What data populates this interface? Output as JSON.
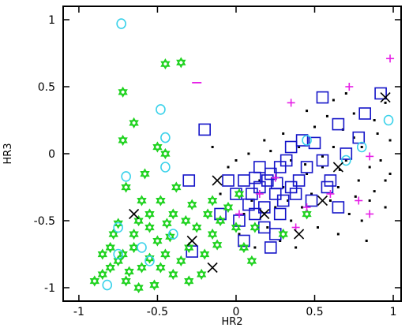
{
  "chart_data": {
    "type": "scatter",
    "title": "",
    "xlabel": "HR2",
    "ylabel": "HR3",
    "xlim": [
      -1.1,
      1.05
    ],
    "ylim": [
      -1.1,
      1.1
    ],
    "xticks": [
      -1,
      -0.5,
      0,
      0.5,
      1
    ],
    "xtick_labels": [
      "-1",
      "-0.5",
      "0",
      "0.5",
      "1"
    ],
    "yticks": [
      -1,
      -0.5,
      0,
      0.5,
      1
    ],
    "ytick_labels": [
      "-1",
      "-0.5",
      "0",
      "0.5",
      "1"
    ],
    "grid": false,
    "series": [
      {
        "marker": "dot",
        "color": "#000000",
        "points": [
          [
            0.62,
            0.05
          ],
          [
            0.75,
            0.12
          ],
          [
            0.7,
            -0.05
          ],
          [
            0.8,
            0.05
          ],
          [
            0.85,
            -0.1
          ],
          [
            0.55,
            -0.1
          ],
          [
            0.45,
            -0.15
          ],
          [
            0.35,
            -0.05
          ],
          [
            0.65,
            -0.25
          ],
          [
            0.9,
            0.15
          ],
          [
            0.95,
            -0.2
          ],
          [
            0.5,
            0.2
          ],
          [
            0.4,
            0.05
          ],
          [
            0.3,
            -0.25
          ],
          [
            0.25,
            -0.4
          ],
          [
            0.6,
            -0.35
          ],
          [
            0.72,
            -0.45
          ],
          [
            0.85,
            -0.35
          ],
          [
            0.92,
            -0.05
          ],
          [
            0.98,
            0.1
          ],
          [
            0.15,
            -0.2
          ],
          [
            0.1,
            -0.35
          ],
          [
            0.05,
            -0.45
          ],
          [
            0.2,
            -0.55
          ],
          [
            0.35,
            -0.5
          ],
          [
            0.48,
            -0.3
          ],
          [
            0.78,
            -0.2
          ],
          [
            0.88,
            0.25
          ],
          [
            0.68,
            0.18
          ],
          [
            0.58,
            0.28
          ],
          [
            -0.15,
            0.05
          ],
          [
            -0.05,
            -0.1
          ],
          [
            0.0,
            -0.05
          ],
          [
            0.08,
            0.0
          ],
          [
            0.18,
            0.1
          ],
          [
            0.42,
            -0.4
          ],
          [
            0.52,
            -0.55
          ],
          [
            0.65,
            -0.6
          ],
          [
            0.8,
            -0.5
          ],
          [
            0.95,
            -0.4
          ],
          [
            0.3,
            0.15
          ],
          [
            0.45,
            0.32
          ],
          [
            0.62,
            0.4
          ],
          [
            0.75,
            0.3
          ],
          [
            0.83,
            -0.65
          ],
          [
            -0.1,
            -0.3
          ],
          [
            0.02,
            -0.6
          ],
          [
            0.12,
            -0.7
          ],
          [
            0.28,
            -0.65
          ],
          [
            0.38,
            -0.7
          ],
          [
            0.7,
            0.45
          ],
          [
            0.95,
            0.38
          ],
          [
            0.55,
            -0.02
          ],
          [
            0.66,
            -0.12
          ],
          [
            0.76,
            -0.32
          ],
          [
            0.22,
            0.02
          ],
          [
            0.33,
            -0.35
          ],
          [
            0.44,
            -0.08
          ],
          [
            0.88,
            -0.28
          ],
          [
            0.98,
            -0.15
          ]
        ]
      },
      {
        "marker": "square",
        "color": "#1414c8",
        "points": [
          [
            0.05,
            -0.2
          ],
          [
            0.1,
            -0.3
          ],
          [
            0.15,
            -0.25
          ],
          [
            0.2,
            -0.2
          ],
          [
            0.25,
            -0.3
          ],
          [
            0.3,
            -0.35
          ],
          [
            0.18,
            -0.4
          ],
          [
            0.08,
            -0.38
          ],
          [
            0.22,
            -0.15
          ],
          [
            0.12,
            -0.45
          ],
          [
            0.28,
            -0.1
          ],
          [
            0.35,
            -0.25
          ],
          [
            0.4,
            -0.2
          ],
          [
            0.45,
            -0.1
          ],
          [
            0.55,
            -0.05
          ],
          [
            0.6,
            -0.2
          ],
          [
            0.5,
            0.08
          ],
          [
            0.42,
            0.1
          ],
          [
            0.65,
            0.22
          ],
          [
            0.82,
            0.3
          ],
          [
            0.55,
            0.42
          ],
          [
            0.92,
            0.45
          ],
          [
            0.78,
            0.12
          ],
          [
            -0.2,
            0.18
          ],
          [
            -0.3,
            -0.2
          ],
          [
            -0.1,
            -0.45
          ],
          [
            0.0,
            -0.3
          ],
          [
            -0.05,
            -0.2
          ],
          [
            0.18,
            -0.55
          ],
          [
            0.25,
            -0.6
          ],
          [
            0.05,
            -0.65
          ],
          [
            0.22,
            -0.7
          ],
          [
            -0.28,
            -0.73
          ],
          [
            0.38,
            -0.3
          ],
          [
            0.65,
            -0.4
          ],
          [
            0.7,
            0.0
          ],
          [
            0.32,
            -0.05
          ],
          [
            0.15,
            -0.1
          ],
          [
            0.48,
            -0.35
          ],
          [
            0.28,
            -0.45
          ],
          [
            0.58,
            -0.25
          ],
          [
            0.02,
            -0.5
          ],
          [
            0.35,
            0.05
          ],
          [
            0.12,
            -0.18
          ],
          [
            0.26,
            -0.22
          ]
        ]
      },
      {
        "marker": "star",
        "color": "#1ed21e",
        "points": [
          [
            -0.45,
            0.67
          ],
          [
            -0.72,
            0.46
          ],
          [
            -0.65,
            0.23
          ],
          [
            -0.72,
            0.1
          ],
          [
            -0.45,
            0.0
          ],
          [
            -0.7,
            -0.25
          ],
          [
            -0.6,
            -0.35
          ],
          [
            -0.55,
            -0.55
          ],
          [
            -0.5,
            -0.65
          ],
          [
            -0.45,
            -0.75
          ],
          [
            -0.65,
            -0.7
          ],
          [
            -0.75,
            -0.8
          ],
          [
            -0.8,
            -0.85
          ],
          [
            -0.85,
            -0.9
          ],
          [
            -0.7,
            -0.95
          ],
          [
            -0.6,
            -0.85
          ],
          [
            -0.4,
            -0.9
          ],
          [
            -0.35,
            -0.8
          ],
          [
            -0.3,
            -0.7
          ],
          [
            -0.2,
            -0.75
          ],
          [
            -0.25,
            -0.55
          ],
          [
            -0.15,
            -0.6
          ],
          [
            -0.1,
            -0.5
          ],
          [
            -0.05,
            -0.4
          ],
          [
            0.0,
            -0.55
          ],
          [
            0.05,
            -0.7
          ],
          [
            0.1,
            -0.8
          ],
          [
            -0.4,
            -0.45
          ],
          [
            -0.48,
            -0.35
          ],
          [
            -0.55,
            -0.45
          ],
          [
            -0.65,
            -0.6
          ],
          [
            -0.72,
            -0.75
          ],
          [
            -0.8,
            -0.7
          ],
          [
            -0.68,
            -0.88
          ],
          [
            -0.52,
            -0.98
          ],
          [
            -0.42,
            -0.62
          ],
          [
            -0.32,
            -0.5
          ],
          [
            -0.28,
            -0.38
          ],
          [
            -0.18,
            -0.45
          ],
          [
            0.02,
            -0.3
          ],
          [
            -0.35,
            0.68
          ],
          [
            -0.5,
            0.05
          ],
          [
            -0.58,
            -0.15
          ],
          [
            0.3,
            -0.6
          ],
          [
            0.45,
            -0.45
          ],
          [
            -0.22,
            -0.9
          ],
          [
            -0.12,
            -0.68
          ],
          [
            -0.62,
            -0.5
          ],
          [
            -0.78,
            -0.6
          ],
          [
            -0.85,
            -0.75
          ],
          [
            -0.9,
            -0.95
          ],
          [
            -0.75,
            -0.52
          ],
          [
            -0.44,
            -0.52
          ],
          [
            -0.38,
            -0.25
          ],
          [
            -0.55,
            -0.78
          ],
          [
            -0.62,
            -1.0
          ],
          [
            -0.48,
            -0.85
          ],
          [
            -0.3,
            -0.95
          ],
          [
            -0.15,
            -0.35
          ],
          [
            0.12,
            -0.55
          ]
        ]
      },
      {
        "marker": "circle",
        "color": "#3ad2ea",
        "points": [
          [
            -0.73,
            0.97
          ],
          [
            -0.48,
            0.33
          ],
          [
            -0.45,
            0.12
          ],
          [
            -0.7,
            -0.17
          ],
          [
            -0.45,
            -0.1
          ],
          [
            -0.75,
            -0.55
          ],
          [
            -0.6,
            -0.7
          ],
          [
            -0.75,
            -0.75
          ],
          [
            -0.82,
            -0.98
          ],
          [
            -0.55,
            -0.8
          ],
          [
            0.45,
            0.1
          ],
          [
            0.97,
            0.25
          ],
          [
            0.7,
            -0.05
          ],
          [
            0.8,
            0.05
          ],
          [
            -0.4,
            -0.6
          ]
        ]
      },
      {
        "marker": "plus",
        "color": "#e61ee6",
        "points": [
          [
            0.98,
            0.71
          ],
          [
            0.72,
            0.5
          ],
          [
            0.35,
            0.38
          ],
          [
            0.85,
            -0.02
          ],
          [
            0.15,
            -0.3
          ],
          [
            0.45,
            -0.4
          ],
          [
            0.6,
            -0.3
          ],
          [
            0.85,
            -0.45
          ],
          [
            0.38,
            -0.55
          ],
          [
            0.02,
            -0.45
          ],
          [
            0.78,
            -0.35
          ],
          [
            0.25,
            -0.18
          ]
        ]
      },
      {
        "marker": "cross",
        "color": "#000000",
        "points": [
          [
            -0.65,
            -0.45
          ],
          [
            -0.28,
            -0.65
          ],
          [
            -0.15,
            -0.85
          ],
          [
            -0.12,
            -0.2
          ],
          [
            0.95,
            0.42
          ],
          [
            0.18,
            -0.45
          ],
          [
            0.65,
            -0.1
          ],
          [
            0.4,
            -0.6
          ],
          [
            0.55,
            -0.35
          ]
        ]
      },
      {
        "marker": "dash",
        "color": "#e61ee6",
        "points": [
          [
            -0.25,
            0.53
          ]
        ]
      }
    ]
  }
}
